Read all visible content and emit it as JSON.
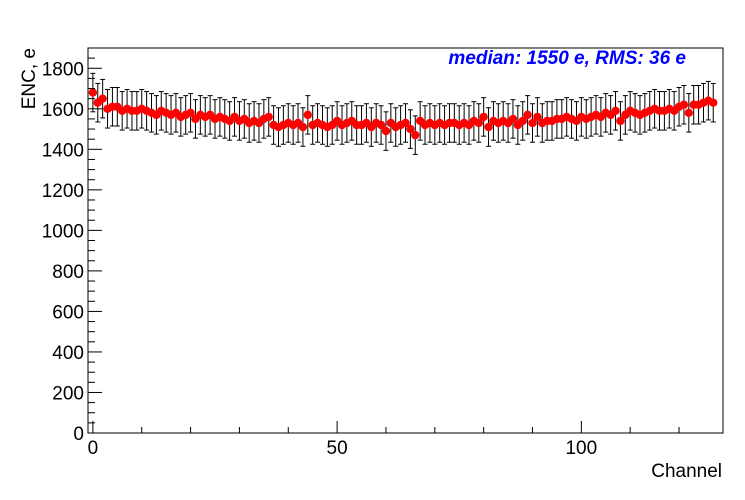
{
  "chart_data": {
    "type": "scatter",
    "title": "",
    "xlabel": "Channel",
    "ylabel": "ENC, e",
    "xlim": [
      -1,
      129
    ],
    "ylim": [
      0,
      1900
    ],
    "x_ticks": [
      0,
      50,
      100
    ],
    "y_ticks": [
      0,
      200,
      400,
      600,
      800,
      1000,
      1200,
      1400,
      1600,
      1800
    ],
    "x_tick_labels": [
      "0",
      "50",
      "100"
    ],
    "y_tick_labels": [
      "0",
      "200",
      "400",
      "600",
      "800",
      "1000",
      "1200",
      "1400",
      "1600",
      "1800"
    ],
    "annotation": "median: 1550 e, RMS: 36 e",
    "grid": false,
    "marker_color": "#ff0000",
    "annotation_color": "#0000ff",
    "error_bar": 95,
    "series": [
      {
        "x": [
          0,
          1,
          2,
          3,
          4,
          5,
          6,
          7,
          8,
          9,
          10,
          11,
          12,
          13,
          14,
          15,
          16,
          17,
          18,
          19,
          20,
          21,
          22,
          23,
          24,
          25,
          26,
          27,
          28,
          29,
          30,
          31,
          32,
          33,
          34,
          35,
          36,
          37,
          38,
          39,
          40,
          41,
          42,
          43,
          44,
          45,
          46,
          47,
          48,
          49,
          50,
          51,
          52,
          53,
          54,
          55,
          56,
          57,
          58,
          59,
          60,
          61,
          62,
          63,
          64,
          65,
          66,
          67,
          68,
          69,
          70,
          71,
          72,
          73,
          74,
          75,
          76,
          77,
          78,
          79,
          80,
          81,
          82,
          83,
          84,
          85,
          86,
          87,
          88,
          89,
          90,
          91,
          92,
          93,
          94,
          95,
          96,
          97,
          98,
          99,
          100,
          101,
          102,
          103,
          104,
          105,
          106,
          107,
          108,
          109,
          110,
          111,
          112,
          113,
          114,
          115,
          116,
          117,
          118,
          119,
          120,
          121,
          122,
          123,
          124,
          125,
          126,
          127
        ],
        "y": [
          1680,
          1630,
          1650,
          1600,
          1610,
          1610,
          1590,
          1600,
          1590,
          1590,
          1600,
          1590,
          1580,
          1570,
          1590,
          1580,
          1570,
          1580,
          1560,
          1570,
          1580,
          1550,
          1570,
          1560,
          1570,
          1550,
          1560,
          1550,
          1540,
          1560,
          1540,
          1550,
          1530,
          1540,
          1530,
          1550,
          1560,
          1520,
          1510,
          1520,
          1530,
          1520,
          1530,
          1510,
          1570,
          1520,
          1530,
          1520,
          1510,
          1520,
          1540,
          1520,
          1530,
          1540,
          1520,
          1520,
          1530,
          1510,
          1530,
          1520,
          1490,
          1530,
          1510,
          1520,
          1530,
          1500,
          1470,
          1540,
          1520,
          1530,
          1520,
          1530,
          1520,
          1530,
          1530,
          1520,
          1530,
          1520,
          1540,
          1530,
          1560,
          1510,
          1540,
          1530,
          1540,
          1530,
          1550,
          1520,
          1540,
          1570,
          1530,
          1560,
          1530,
          1540,
          1540,
          1550,
          1550,
          1560,
          1550,
          1540,
          1560,
          1550,
          1560,
          1570,
          1560,
          1580,
          1570,
          1590,
          1540,
          1570,
          1590,
          1580,
          1570,
          1580,
          1590,
          1600,
          1590,
          1590,
          1600,
          1590,
          1610,
          1620,
          1580,
          1620,
          1620,
          1630,
          1640,
          1630
        ]
      }
    ]
  }
}
